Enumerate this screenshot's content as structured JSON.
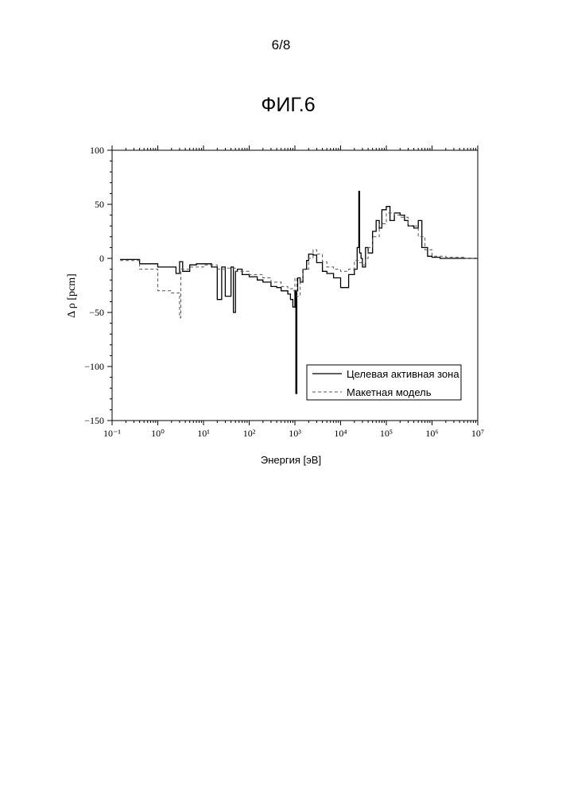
{
  "page": {
    "number": "6/8",
    "figure_title": "ФИГ.6"
  },
  "chart_data": {
    "type": "line",
    "x_scale": "log",
    "xlabel": "Энергия [эВ]",
    "ylabel": "Δ ρ [pcm]",
    "xlim": [
      0.1,
      10000000
    ],
    "ylim": [
      -150,
      100
    ],
    "x_tick_labels": [
      "10⁻¹",
      "10⁰",
      "10¹",
      "10²",
      "10³",
      "10⁴",
      "10⁵",
      "10⁶",
      "10⁷"
    ],
    "y_ticks": [
      -150,
      -100,
      -50,
      0,
      50,
      100
    ],
    "y_tick_labels": [
      "−150",
      "−100",
      "−50",
      "0",
      "50",
      "100"
    ],
    "grid": false,
    "legend_position": "bottom-right",
    "series": [
      {
        "name": "Целевая активная зона",
        "style": "solid",
        "color": "#000000",
        "x": [
          0.15,
          0.4,
          1.0,
          2.5,
          3.0,
          3.5,
          5,
          7,
          10,
          15,
          20,
          25,
          30,
          40,
          45,
          50,
          55,
          70,
          100,
          150,
          200,
          300,
          400,
          500,
          700,
          800,
          900,
          1000,
          1050,
          1100,
          1150,
          1300,
          1500,
          1800,
          2000,
          2500,
          3000,
          4000,
          5000,
          7000,
          10000,
          15000,
          20000,
          23000,
          25000,
          26000,
          28000,
          30000,
          35000,
          40000,
          50000,
          60000,
          70000,
          80000,
          100000,
          120000,
          150000,
          200000,
          250000,
          300000,
          400000,
          500000,
          600000,
          800000,
          1000000,
          1500000,
          2000000,
          3000000,
          5000000,
          7000000
        ],
        "y": [
          -1,
          -5,
          -8,
          -14,
          -3,
          -12,
          -6,
          -5,
          -5,
          -8,
          -38,
          -8,
          -35,
          -8,
          -50,
          -12,
          -10,
          -15,
          -17,
          -20,
          -22,
          -26,
          -27,
          -30,
          -33,
          -38,
          -45,
          -30,
          -125,
          -30,
          -18,
          -22,
          -10,
          -2,
          4,
          3,
          -4,
          -12,
          -14,
          -18,
          -27,
          -15,
          -10,
          10,
          62,
          5,
          0,
          -8,
          10,
          5,
          25,
          35,
          28,
          45,
          48,
          35,
          42,
          40,
          35,
          30,
          28,
          35,
          10,
          2,
          1,
          0,
          0,
          0,
          0,
          0
        ]
      },
      {
        "name": "Макетная модель",
        "style": "dashed",
        "color": "#555555",
        "x": [
          0.15,
          0.4,
          0.7,
          1.0,
          2.0,
          3.0,
          3.2,
          5,
          10,
          20,
          30,
          50,
          100,
          200,
          300,
          500,
          700,
          900,
          1000,
          1100,
          1300,
          1500,
          2000,
          2500,
          3000,
          4000,
          5000,
          7000,
          10000,
          15000,
          20000,
          25000,
          30000,
          35000,
          40000,
          50000,
          70000,
          100000,
          150000,
          200000,
          300000,
          500000,
          700000,
          1000000,
          2000000,
          5000000
        ],
        "y": [
          -2,
          -10,
          -10,
          -30,
          -32,
          -55,
          -10,
          -8,
          -6,
          -10,
          -9,
          -12,
          -15,
          -18,
          -22,
          -26,
          -28,
          -30,
          -18,
          -35,
          -20,
          -10,
          0,
          8,
          4,
          -3,
          -8,
          -10,
          -12,
          -10,
          -2,
          -4,
          -6,
          0,
          10,
          20,
          32,
          42,
          40,
          38,
          30,
          20,
          8,
          2,
          1,
          0
        ]
      }
    ]
  }
}
